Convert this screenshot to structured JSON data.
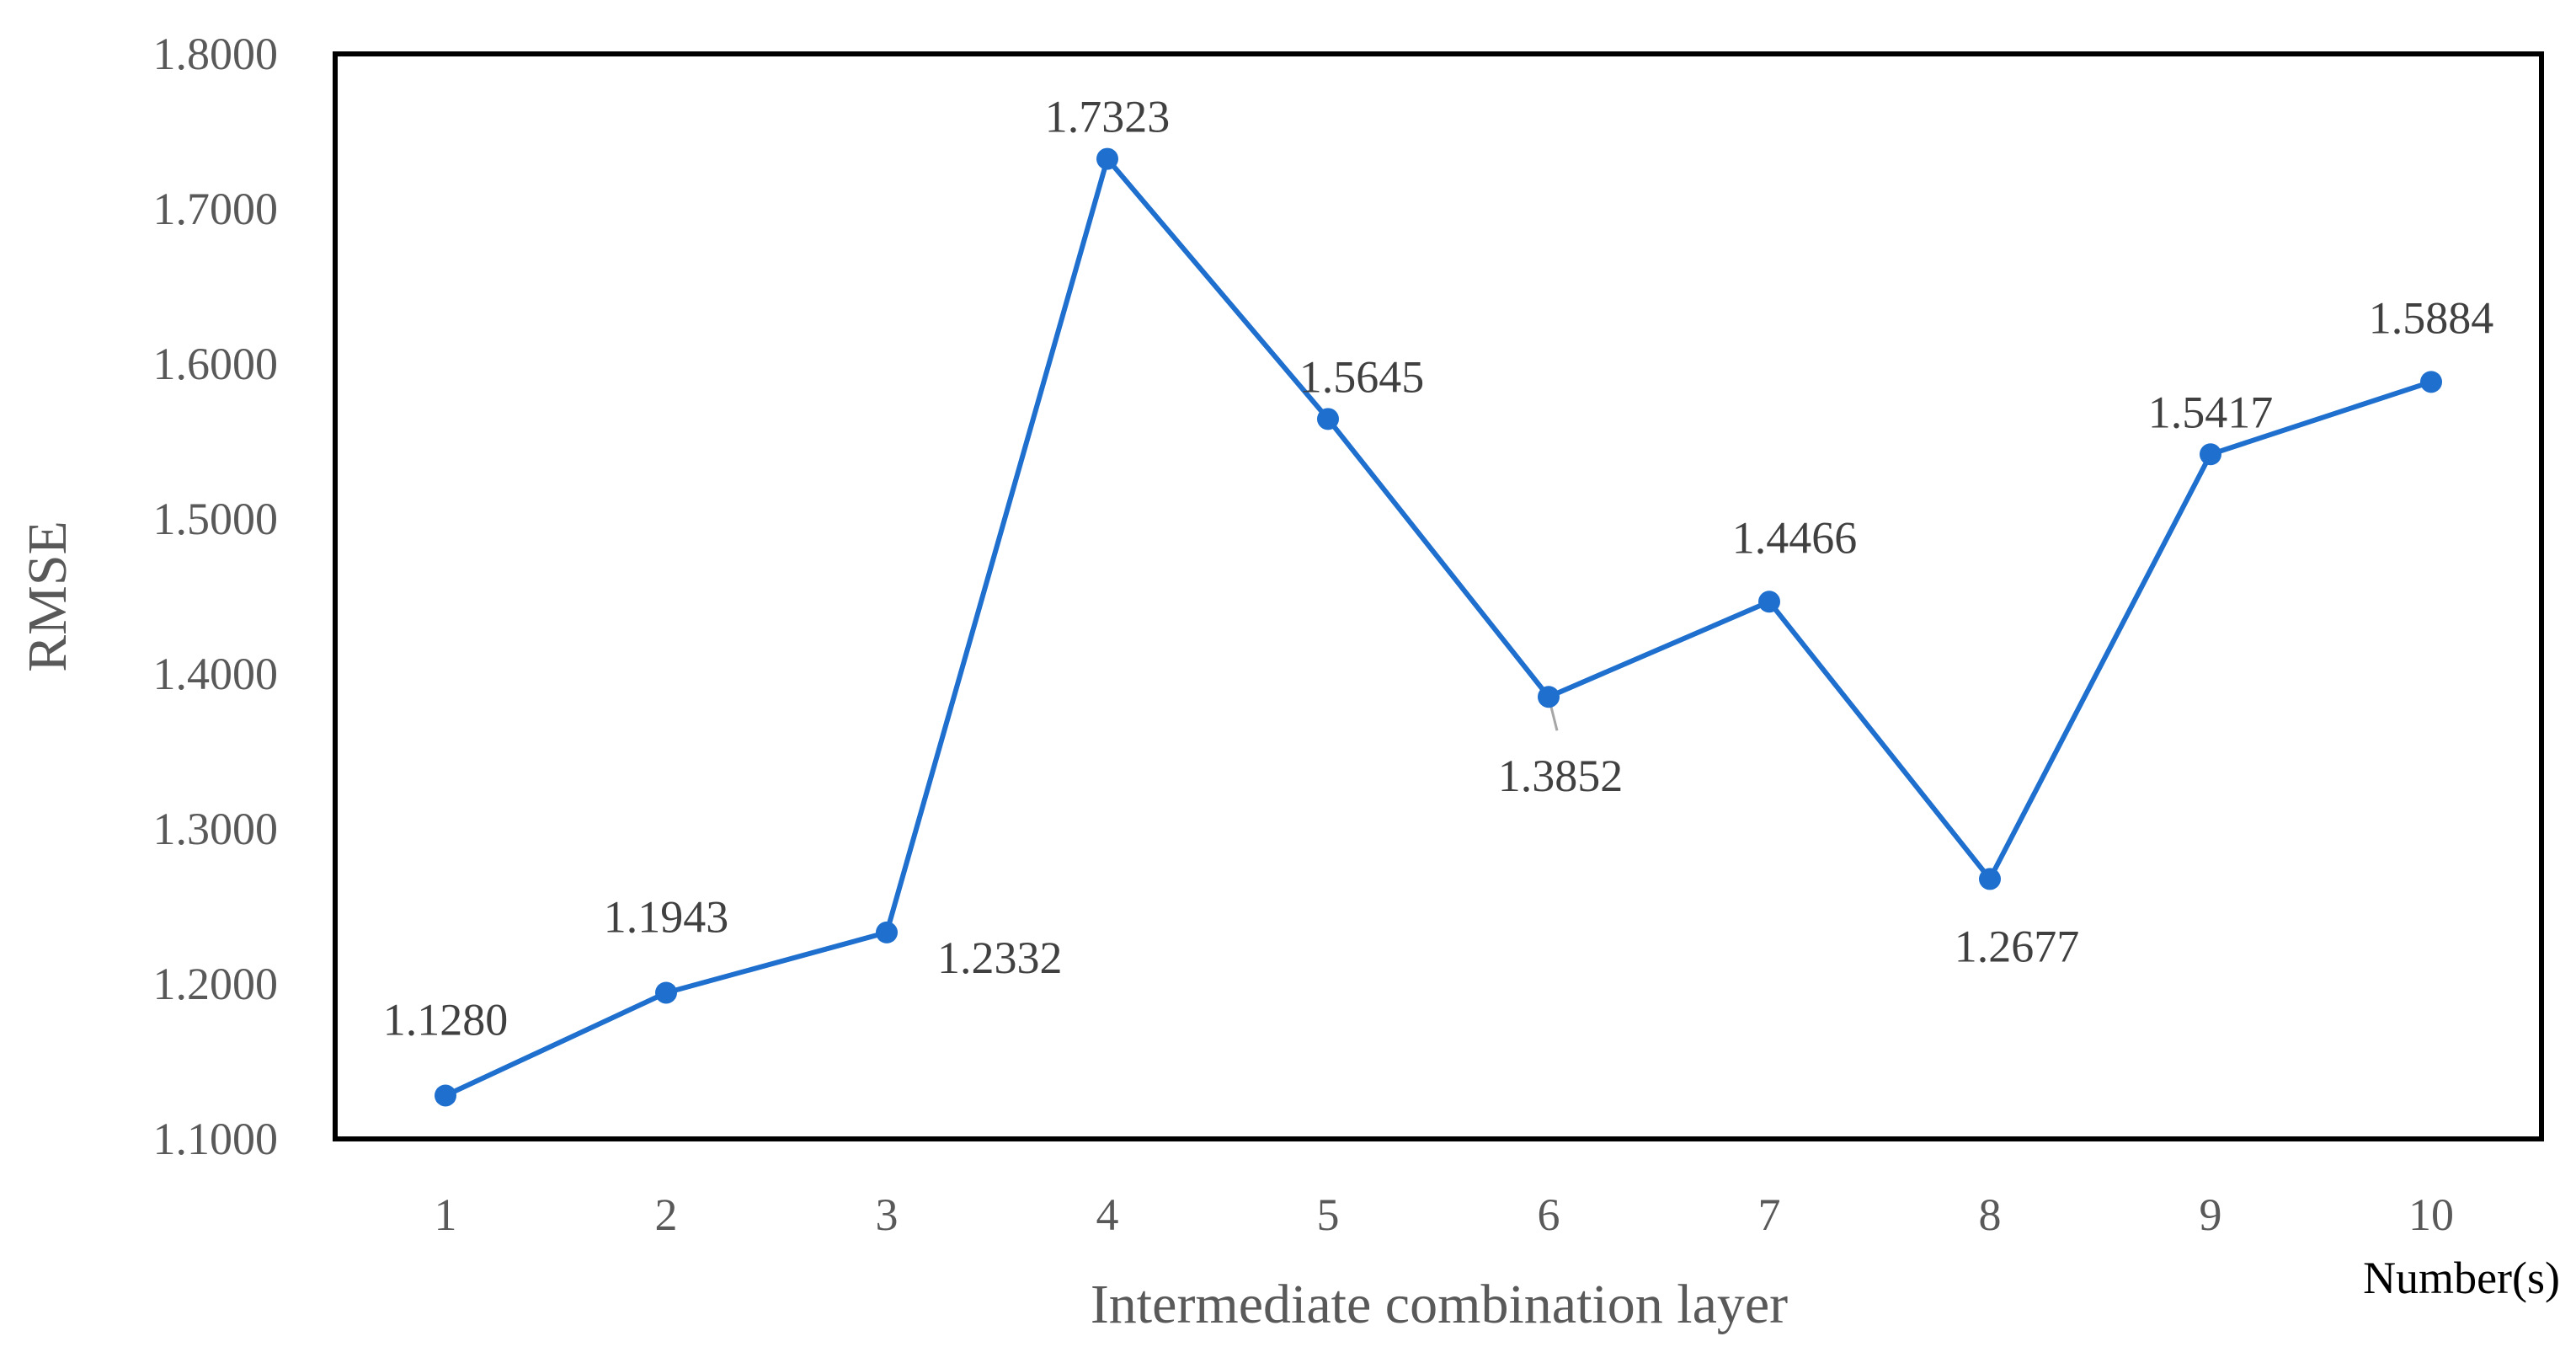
{
  "chart_data": {
    "type": "line",
    "title": "",
    "xlabel": "Intermediate combination layer",
    "ylabel": "RMSE",
    "x_unit_label": "Number(s)",
    "categories": [
      "1",
      "2",
      "3",
      "4",
      "5",
      "6",
      "7",
      "8",
      "9",
      "10"
    ],
    "y_ticks": [
      "1.1000",
      "1.2000",
      "1.3000",
      "1.4000",
      "1.5000",
      "1.6000",
      "1.7000",
      "1.8000"
    ],
    "ylim": [
      1.1,
      1.8
    ],
    "grid": false,
    "legend": "none",
    "series": [
      {
        "values": [
          1.128,
          1.1943,
          1.2332,
          1.7323,
          1.5645,
          1.3852,
          1.4466,
          1.2677,
          1.5417,
          1.5884
        ],
        "labels": [
          "1.1280",
          "1.1943",
          "1.2332",
          "1.7323",
          "1.5645",
          "1.3852",
          "1.4466",
          "1.2677",
          "1.5417",
          "1.5884"
        ],
        "color": "#1f6fce"
      }
    ],
    "colors": {
      "line": "#1f6fce",
      "frame": "#000000",
      "text": "#595959"
    }
  }
}
